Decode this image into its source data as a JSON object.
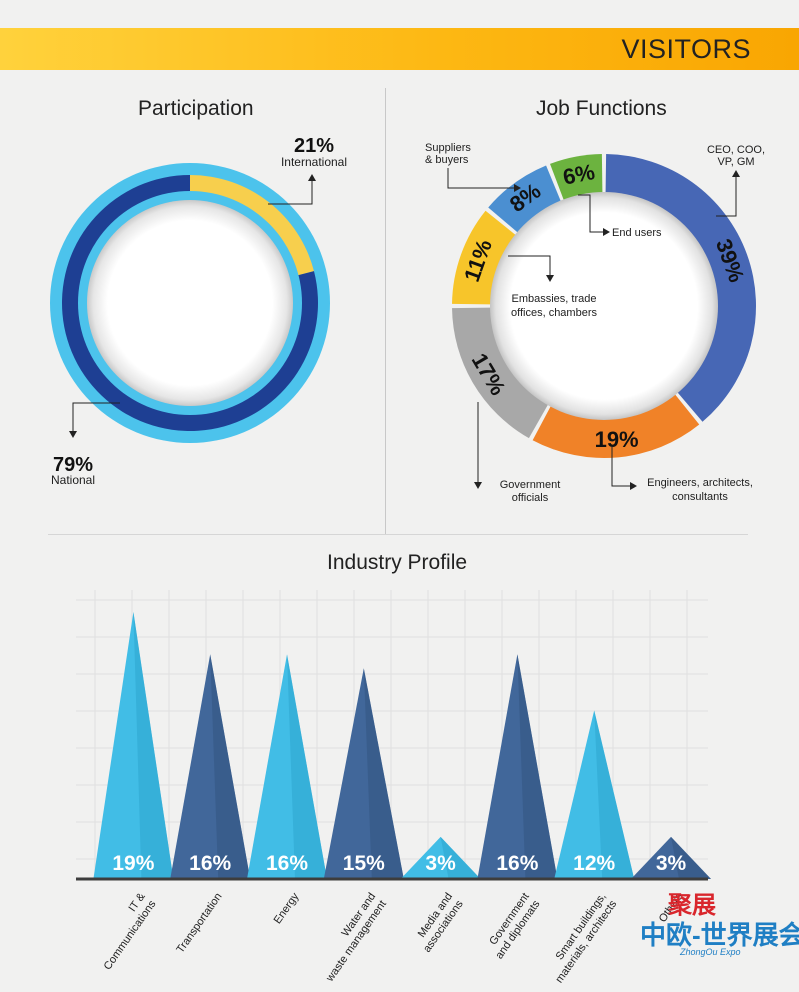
{
  "header": {
    "title": "VISITORS"
  },
  "sections": {
    "participation": "Participation",
    "job_functions": "Job Functions",
    "industry_profile": "Industry Profile"
  },
  "chart_data": [
    {
      "type": "pie",
      "title": "Participation",
      "slices": [
        {
          "label": "International",
          "value": 21,
          "display": "21%",
          "color": "#f7cf4d"
        },
        {
          "label": "National",
          "value": 79,
          "display": "79%",
          "color": "#1e3f93"
        }
      ]
    },
    {
      "type": "pie",
      "title": "Job Functions",
      "slices": [
        {
          "label": "CEO, COO, VP, GM",
          "value": 39,
          "display": "39%",
          "color": "#4767b5"
        },
        {
          "label": "Engineers, architects, consultants",
          "value": 19,
          "display": "19%",
          "color": "#f08228"
        },
        {
          "label": "Government officials",
          "value": 17,
          "display": "17%",
          "color": "#a8a8a8"
        },
        {
          "label": "Embassies, trade offices, chambers",
          "value": 11,
          "display": "11%",
          "color": "#f7c52a"
        },
        {
          "label": "Suppliers & buyers",
          "value": 8,
          "display": "8%",
          "color": "#4b8fd1"
        },
        {
          "label": "End users",
          "value": 6,
          "display": "6%",
          "color": "#6cb33f"
        }
      ]
    },
    {
      "type": "bar",
      "title": "Industry Profile",
      "categories": [
        "IT & Communications",
        "Transportation",
        "Energy",
        "Water and waste management",
        "Media and associations",
        "Government and diplomats",
        "Smart buildings, materials, architects",
        "Others"
      ],
      "values": [
        19,
        16,
        16,
        15,
        3,
        16,
        12,
        3
      ],
      "value_labels": [
        "19%",
        "16%",
        "16%",
        "15%",
        "3%",
        "16%",
        "12%",
        "3%"
      ],
      "ylim": [
        0,
        20
      ],
      "grid": true,
      "colors": {
        "light": "#41bde6",
        "dark": "#41679a"
      }
    }
  ],
  "watermark": {
    "top": "聚展",
    "main": "中欧-世界展会",
    "sub": "ZhongOu Expo"
  }
}
